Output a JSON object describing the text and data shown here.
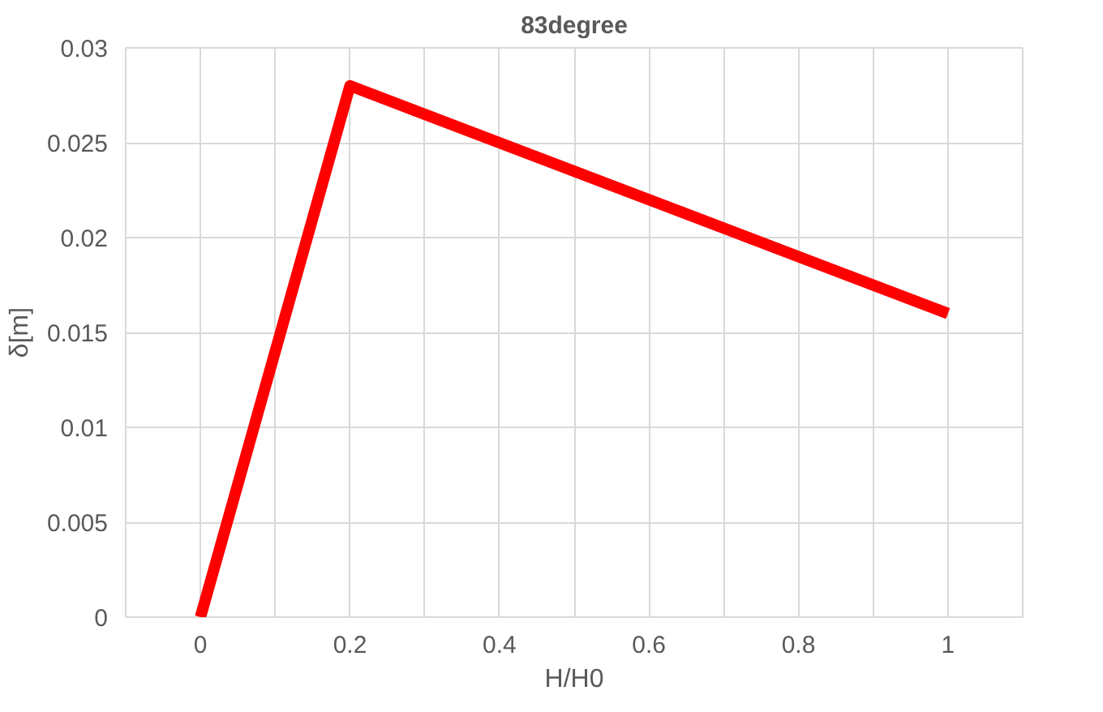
{
  "chart_data": {
    "type": "line",
    "title": "83degree",
    "xlabel": "H/H0",
    "ylabel": "δ[m]",
    "x": [
      0,
      0.2,
      1
    ],
    "series": [
      {
        "color": "#ff0000",
        "values": [
          0,
          0.028,
          0.016
        ]
      }
    ],
    "xlim": [
      -0.1,
      1.1
    ],
    "xticks": [
      0,
      {
        "value": 0.1,
        "label": null
      },
      0.2,
      {
        "value": 0.3,
        "label": null
      },
      0.4,
      {
        "value": 0.5,
        "label": null
      },
      0.6,
      {
        "value": 0.7,
        "label": null
      },
      0.8,
      {
        "value": 0.9,
        "label": null
      },
      1
    ],
    "ylim": [
      0,
      0.03
    ],
    "yticks": [
      0,
      0.005,
      0.01,
      0.015,
      0.02,
      0.025,
      0.03
    ],
    "grid": true,
    "marker": "none",
    "line_style": "solid"
  }
}
